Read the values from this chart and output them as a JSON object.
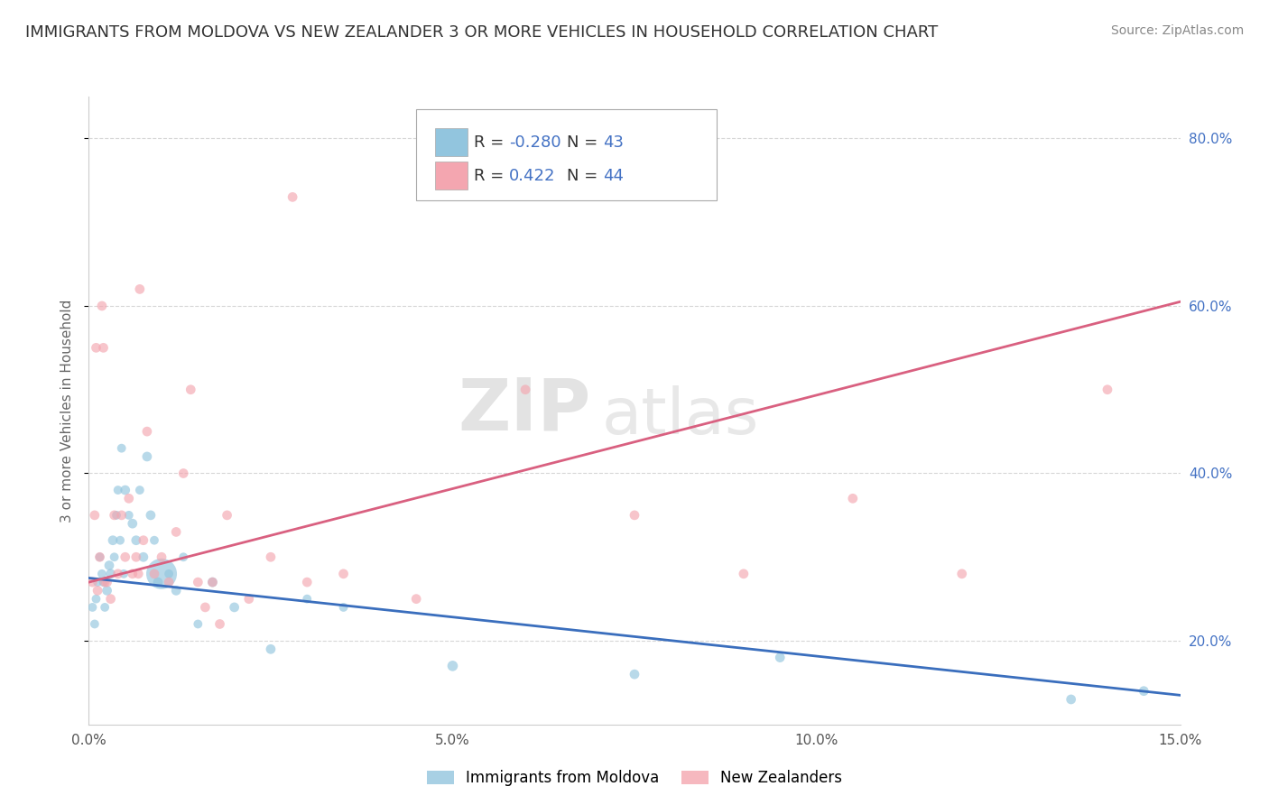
{
  "title": "IMMIGRANTS FROM MOLDOVA VS NEW ZEALANDER 3 OR MORE VEHICLES IN HOUSEHOLD CORRELATION CHART",
  "source": "Source: ZipAtlas.com",
  "ylabel": "3 or more Vehicles in Household",
  "xlim": [
    0.0,
    15.0
  ],
  "ylim": [
    10.0,
    85.0
  ],
  "x_ticks": [
    0.0,
    5.0,
    10.0,
    15.0
  ],
  "x_tick_labels": [
    "0.0%",
    "5.0%",
    "10.0%",
    "15.0%"
  ],
  "y_ticks": [
    20.0,
    40.0,
    60.0,
    80.0
  ],
  "y_tick_labels": [
    "20.0%",
    "40.0%",
    "60.0%",
    "80.0%"
  ],
  "legend_labels": [
    "Immigrants from Moldova",
    "New Zealanders"
  ],
  "legend_R": [
    "-0.280",
    "0.422"
  ],
  "legend_N": [
    "43",
    "44"
  ],
  "blue_color": "#92c5de",
  "pink_color": "#f4a6b0",
  "blue_line_color": "#3a6ebd",
  "pink_line_color": "#d96080",
  "watermark_zip": "ZIP",
  "watermark_atlas": "atlas",
  "blue_scatter_x": [
    0.05,
    0.08,
    0.1,
    0.12,
    0.15,
    0.18,
    0.2,
    0.22,
    0.25,
    0.28,
    0.3,
    0.33,
    0.35,
    0.38,
    0.4,
    0.43,
    0.45,
    0.48,
    0.5,
    0.55,
    0.6,
    0.65,
    0.7,
    0.75,
    0.8,
    0.85,
    0.9,
    0.95,
    1.0,
    1.1,
    1.2,
    1.3,
    1.5,
    1.7,
    2.0,
    2.5,
    3.0,
    3.5,
    5.0,
    7.5,
    9.5,
    13.5,
    14.5
  ],
  "blue_scatter_y": [
    24,
    22,
    25,
    27,
    30,
    28,
    27,
    24,
    26,
    29,
    28,
    32,
    30,
    35,
    38,
    32,
    43,
    28,
    38,
    35,
    34,
    32,
    38,
    30,
    42,
    35,
    32,
    27,
    28,
    28,
    26,
    30,
    22,
    27,
    24,
    19,
    25,
    24,
    17,
    16,
    18,
    13,
    14
  ],
  "blue_scatter_size": [
    50,
    50,
    50,
    50,
    50,
    50,
    50,
    50,
    60,
    60,
    60,
    60,
    50,
    50,
    50,
    50,
    50,
    50,
    60,
    50,
    60,
    60,
    50,
    60,
    60,
    60,
    50,
    60,
    600,
    50,
    60,
    50,
    50,
    60,
    60,
    60,
    50,
    50,
    70,
    60,
    60,
    60,
    60
  ],
  "pink_scatter_x": [
    0.05,
    0.08,
    0.1,
    0.12,
    0.15,
    0.18,
    0.2,
    0.25,
    0.3,
    0.35,
    0.4,
    0.45,
    0.5,
    0.55,
    0.6,
    0.65,
    0.7,
    0.75,
    0.8,
    0.9,
    1.0,
    1.1,
    1.2,
    1.3,
    1.4,
    1.5,
    1.7,
    1.9,
    2.2,
    2.5,
    3.0,
    3.5,
    4.5,
    6.0,
    7.5,
    9.0,
    10.5,
    12.0,
    14.0,
    1.6,
    0.22,
    0.68,
    2.8,
    1.8
  ],
  "pink_scatter_y": [
    27,
    35,
    55,
    26,
    30,
    60,
    55,
    27,
    25,
    35,
    28,
    35,
    30,
    37,
    28,
    30,
    62,
    32,
    45,
    28,
    30,
    27,
    33,
    40,
    50,
    27,
    27,
    35,
    25,
    30,
    27,
    28,
    25,
    50,
    35,
    28,
    37,
    28,
    50,
    24,
    27,
    28,
    73,
    22
  ],
  "pink_scatter_size": [
    60,
    60,
    60,
    60,
    60,
    60,
    60,
    60,
    60,
    60,
    60,
    60,
    60,
    60,
    60,
    60,
    60,
    60,
    60,
    60,
    60,
    60,
    60,
    60,
    60,
    60,
    60,
    60,
    60,
    60,
    60,
    60,
    60,
    60,
    60,
    60,
    60,
    60,
    60,
    60,
    60,
    60,
    60,
    60
  ],
  "blue_trend_x": [
    0.0,
    15.0
  ],
  "blue_trend_y": [
    27.5,
    13.5
  ],
  "pink_trend_x": [
    0.0,
    15.0
  ],
  "pink_trend_y": [
    27.0,
    60.5
  ],
  "grid_color": "#cccccc",
  "background_color": "#ffffff",
  "title_fontsize": 13,
  "axis_label_fontsize": 11,
  "tick_fontsize": 11,
  "legend_fontsize": 13
}
